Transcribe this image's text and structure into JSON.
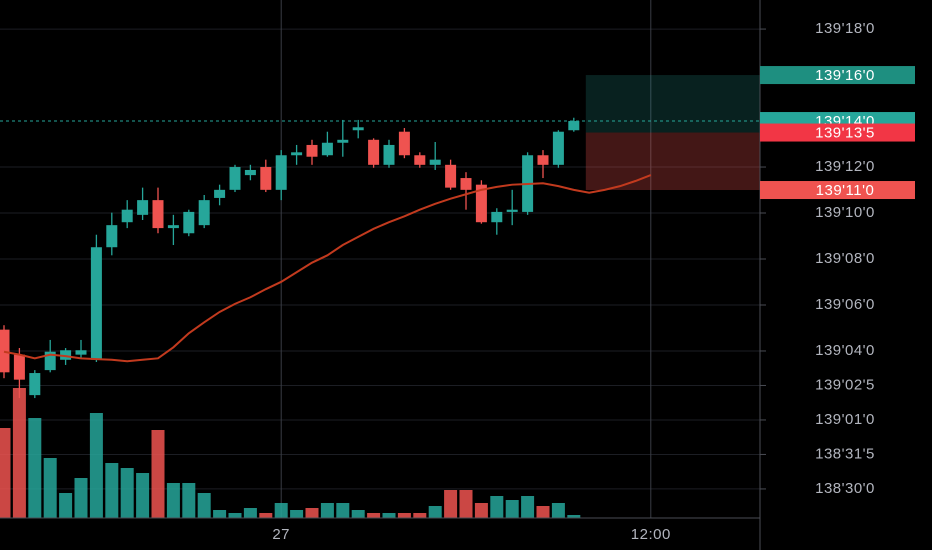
{
  "chart_data": {
    "type": "candlestick",
    "categories": [
      null,
      null,
      null,
      null,
      null,
      null,
      null,
      null,
      null,
      null,
      null,
      null,
      null,
      null,
      null,
      null,
      null,
      null,
      "27",
      null,
      null,
      null,
      null,
      null,
      null,
      null,
      null,
      null,
      null,
      null,
      null,
      null,
      null,
      null,
      null,
      null,
      null,
      null,
      null,
      null,
      null,
      null,
      "12:00"
    ],
    "open": [
      139.154,
      139.12,
      139.065,
      139.099,
      139.113,
      139.12,
      139.113,
      139.266,
      139.3,
      139.31,
      139.33,
      139.292,
      139.285,
      139.296,
      139.333,
      139.344,
      139.364,
      139.375,
      139.344,
      139.391,
      139.405,
      139.391,
      139.408,
      139.425,
      139.412,
      139.378,
      139.423,
      139.391,
      139.378,
      139.378,
      139.36,
      139.351,
      139.3,
      139.314,
      139.314,
      139.391,
      139.378,
      139.425,
      null,
      null,
      null,
      null,
      null
    ],
    "high": [
      139.16,
      139.129,
      139.099,
      139.14,
      139.129,
      139.14,
      139.283,
      139.313,
      139.33,
      139.347,
      139.347,
      139.31,
      139.317,
      139.337,
      139.351,
      139.378,
      139.378,
      139.385,
      139.398,
      139.405,
      139.412,
      139.423,
      139.439,
      139.439,
      139.414,
      139.412,
      139.428,
      139.395,
      139.409,
      139.385,
      139.368,
      139.357,
      139.319,
      139.344,
      139.395,
      139.398,
      139.425,
      139.442,
      null,
      null,
      null,
      null,
      null
    ],
    "low": [
      139.088,
      139.061,
      139.061,
      139.096,
      139.106,
      139.115,
      139.11,
      139.255,
      139.292,
      139.303,
      139.285,
      139.269,
      139.281,
      139.292,
      139.323,
      139.341,
      139.357,
      139.341,
      139.33,
      139.378,
      139.378,
      139.389,
      139.389,
      139.414,
      139.374,
      139.374,
      139.387,
      139.374,
      139.371,
      139.344,
      139.317,
      139.298,
      139.283,
      139.296,
      139.31,
      139.36,
      139.374,
      139.423,
      null,
      null,
      null,
      null,
      null
    ],
    "close": [
      139.096,
      139.086,
      139.095,
      139.124,
      139.126,
      139.126,
      139.266,
      139.296,
      139.317,
      139.33,
      139.292,
      139.296,
      139.314,
      139.33,
      139.344,
      139.375,
      139.371,
      139.344,
      139.391,
      139.395,
      139.389,
      139.408,
      139.412,
      139.429,
      139.378,
      139.405,
      139.391,
      139.378,
      139.385,
      139.347,
      139.344,
      139.3,
      139.314,
      139.317,
      139.391,
      139.378,
      139.423,
      139.4375,
      null,
      null,
      null,
      null,
      null
    ],
    "volume": [
      90,
      130,
      100,
      60,
      25,
      40,
      105,
      55,
      50,
      45,
      88,
      35,
      35,
      25,
      8,
      5,
      10,
      5,
      15,
      8,
      10,
      15,
      15,
      8,
      5,
      5,
      5,
      5,
      12,
      28,
      28,
      15,
      22,
      18,
      22,
      12,
      15,
      3,
      null,
      null,
      null,
      null,
      null
    ],
    "up_color": "#26a69a",
    "down_color": "#ef5350",
    "ma": {
      "color": "#c23a1e",
      "values": [
        139.124,
        139.12,
        139.115,
        139.12,
        139.118,
        139.115,
        139.114,
        139.113,
        139.111,
        139.113,
        139.115,
        139.13,
        139.149,
        139.164,
        139.178,
        139.189,
        139.198,
        139.209,
        139.219,
        139.232,
        139.245,
        139.255,
        139.269,
        139.28,
        139.291,
        139.3,
        139.308,
        139.317,
        139.325,
        139.332,
        139.338,
        139.344,
        139.348,
        139.351,
        139.352,
        139.353,
        139.349,
        139.344,
        139.34,
        139.344,
        139.349,
        139.356,
        139.364
      ]
    },
    "ylim": [
      138.898,
      139.602
    ],
    "yticks": [
      {
        "value": 139.5625,
        "label": "139'18'0"
      },
      {
        "value": 139.375,
        "label": "139'12'0"
      },
      {
        "value": 139.3125,
        "label": "139'10'0"
      },
      {
        "value": 139.25,
        "label": "139'08'0"
      },
      {
        "value": 139.1875,
        "label": "139'06'0"
      },
      {
        "value": 139.125,
        "label": "139'04'0"
      },
      {
        "value": 139.078125,
        "label": "139'02'5"
      },
      {
        "value": 139.03125,
        "label": "139'01'0"
      },
      {
        "value": 138.984375,
        "label": "138'31'5"
      },
      {
        "value": 138.9375,
        "label": "138'30'0"
      }
    ],
    "grid": true,
    "current_price": {
      "value": 139.4375,
      "label": "139'14'0"
    },
    "position": {
      "take_profit": {
        "value": 139.5,
        "label": "139'16'0"
      },
      "entry": {
        "value": 139.421875,
        "label": "139'13'5"
      },
      "stop": {
        "value": 139.34375,
        "label": "139'11'0"
      }
    }
  }
}
